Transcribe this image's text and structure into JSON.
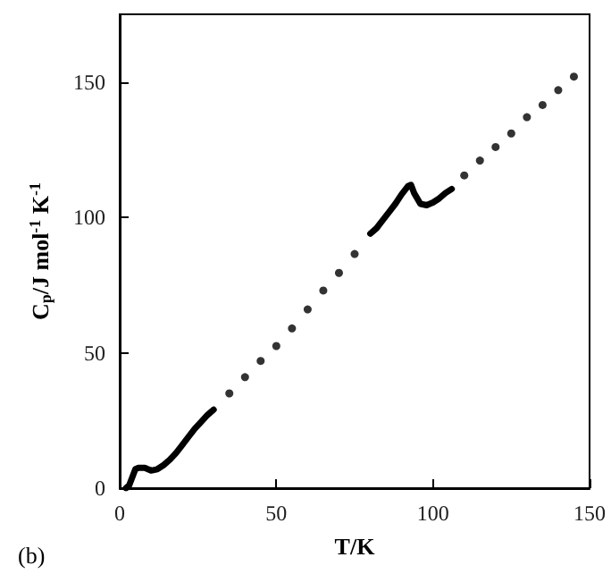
{
  "chart_data": {
    "type": "scatter",
    "xlabel": "T/K",
    "ylabel": "C$_{p}$/J mol$^{-1}$ K$^{-1}$",
    "annotations": [
      "(b)"
    ],
    "xlim": [
      0,
      150
    ],
    "ylim": [
      0,
      175
    ],
    "xticks": [
      0,
      50,
      100,
      150
    ],
    "yticks": [
      0,
      50,
      100,
      150
    ],
    "grid": false,
    "series": [
      {
        "type": "line",
        "color": "#000000",
        "x": [
          2,
          3,
          4,
          5,
          6,
          8,
          10,
          12,
          14,
          16,
          18,
          20,
          22,
          24,
          26,
          28,
          30
        ],
        "values": [
          0,
          1,
          4,
          7,
          7.5,
          7.5,
          6.5,
          7,
          8.5,
          10.5,
          13,
          16,
          19,
          22,
          24.5,
          27,
          29
        ]
      },
      {
        "color": "#000000",
        "x": [
          35,
          40,
          45,
          50,
          55,
          60,
          65,
          70,
          75
        ],
        "values": [
          35,
          41,
          47,
          52.5,
          59,
          66,
          73,
          79.5,
          86.5
        ]
      },
      {
        "type": "line",
        "color": "#000000",
        "x": [
          80,
          82,
          84,
          86,
          88,
          90,
          92,
          93,
          94,
          96,
          98,
          100,
          102,
          104,
          106
        ],
        "values": [
          94,
          96,
          99,
          102,
          105,
          108.5,
          111.5,
          112,
          109,
          105,
          104.5,
          105.5,
          107,
          109,
          110.5
        ]
      },
      {
        "color": "#000000",
        "x": [
          110,
          115,
          120,
          125,
          130,
          135,
          140,
          145
        ],
        "values": [
          115.5,
          121,
          126,
          131,
          137,
          141.5,
          147,
          152
        ]
      }
    ]
  }
}
